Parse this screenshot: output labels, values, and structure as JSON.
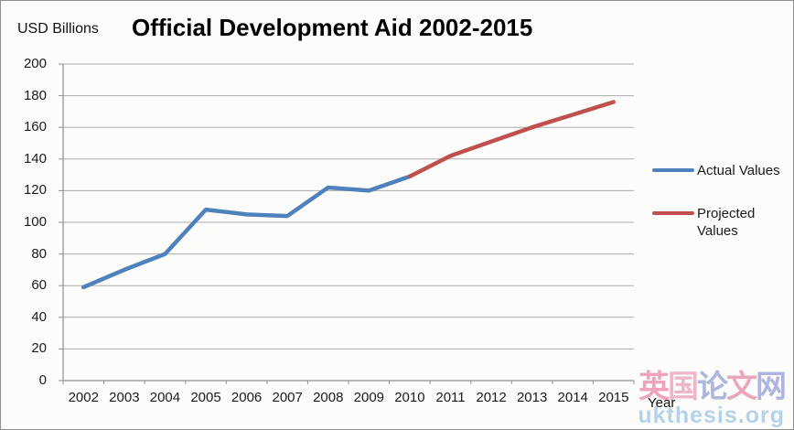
{
  "header": {
    "y_axis_unit": "USD Billions",
    "title": "Official Development Aid 2002-2015"
  },
  "chart_data": {
    "type": "line",
    "title": "Official Development Aid 2002-2015",
    "xlabel": "Year",
    "ylabel": "USD Billions",
    "ylim": [
      0,
      200
    ],
    "ytick_step": 20,
    "grid": "horizontal",
    "legend_position": "right",
    "x": [
      2002,
      2003,
      2004,
      2005,
      2006,
      2007,
      2008,
      2009,
      2010,
      2011,
      2012,
      2013,
      2014,
      2015
    ],
    "series": [
      {
        "name": "Actual Values",
        "color": "#4F81BD",
        "x": [
          2002,
          2003,
          2004,
          2005,
          2006,
          2007,
          2008,
          2009,
          2010
        ],
        "values": [
          59,
          70,
          80,
          108,
          105,
          104,
          122,
          120,
          129
        ]
      },
      {
        "name": "Projected Values",
        "color": "#C0504D",
        "x": [
          2010,
          2011,
          2012,
          2013,
          2014,
          2015
        ],
        "values": [
          129,
          142,
          151,
          160,
          168,
          176
        ]
      }
    ]
  },
  "axes": {
    "y_ticks": [
      "200",
      "180",
      "160",
      "140",
      "120",
      "100",
      "80",
      "60",
      "40",
      "20",
      "0"
    ],
    "x_ticks": [
      "2002",
      "2003",
      "2004",
      "2005",
      "2006",
      "2007",
      "2008",
      "2009",
      "2010",
      "2011",
      "2012",
      "2013",
      "2014",
      "2015"
    ],
    "x_label": "Year",
    "grid_color": "#ABABAB",
    "axis_color": "#8F8F8F"
  },
  "legend": {
    "items": [
      {
        "label": "Actual Values",
        "color": "#4F81BD"
      },
      {
        "label": "Projected Values",
        "color": "#C0504D"
      }
    ]
  },
  "watermark": {
    "line1": "英国论文网",
    "line2": "ukthesis.org",
    "chars": [
      {
        "ch": "英",
        "color": "#EC8FAC"
      },
      {
        "ch": "国",
        "color": "#EBA7BE"
      },
      {
        "ch": "论",
        "color": "#9AA5D6"
      },
      {
        "ch": "文",
        "color": "#E494AA"
      },
      {
        "ch": "网",
        "color": "#9CA3D8"
      }
    ],
    "line2_color": "#A9CBE9"
  }
}
